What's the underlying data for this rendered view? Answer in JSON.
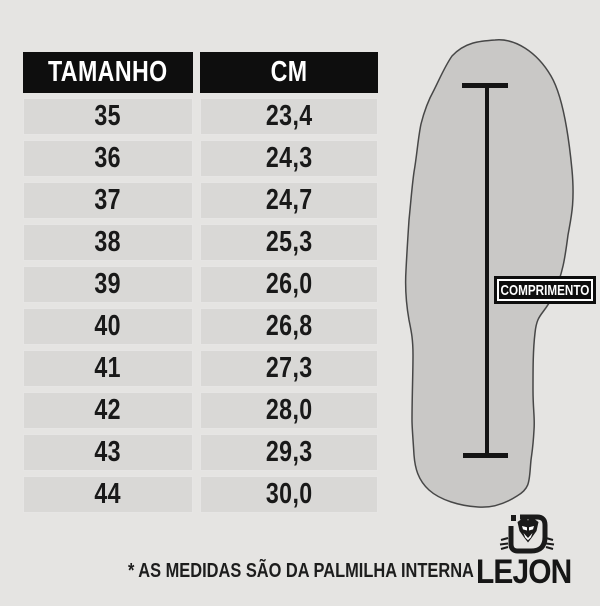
{
  "chart_data": {
    "type": "table",
    "title": "",
    "columns": [
      "TAMANHO",
      "CM"
    ],
    "rows": [
      [
        "35",
        "23,4"
      ],
      [
        "36",
        "24,3"
      ],
      [
        "37",
        "24,7"
      ],
      [
        "38",
        "25,3"
      ],
      [
        "39",
        "26,0"
      ],
      [
        "40",
        "26,8"
      ],
      [
        "41",
        "27,3"
      ],
      [
        "42",
        "28,0"
      ],
      [
        "43",
        "29,3"
      ],
      [
        "44",
        "30,0"
      ]
    ]
  },
  "diagram": {
    "label": "COMPRIMENTO",
    "icon": "insole-outline-icon",
    "measure_icon": "length-measure-line-icon"
  },
  "footnote": "* AS MEDIDAS SÃO DA PALMILHA INTERNA",
  "brand": {
    "wordmark": "LEJON",
    "icon": "lion-monogram-icon"
  },
  "colors": {
    "canvas_bg": "#e5e4e2",
    "header_bg": "#0e0e0e",
    "header_text": "#ffffff",
    "row_bg": "#d9d8d6",
    "text": "#191919",
    "insole_fill": "#c9c8c6",
    "insole_stroke": "#474747",
    "label_bg": "#0d0d0d",
    "label_text": "#ffffff"
  }
}
